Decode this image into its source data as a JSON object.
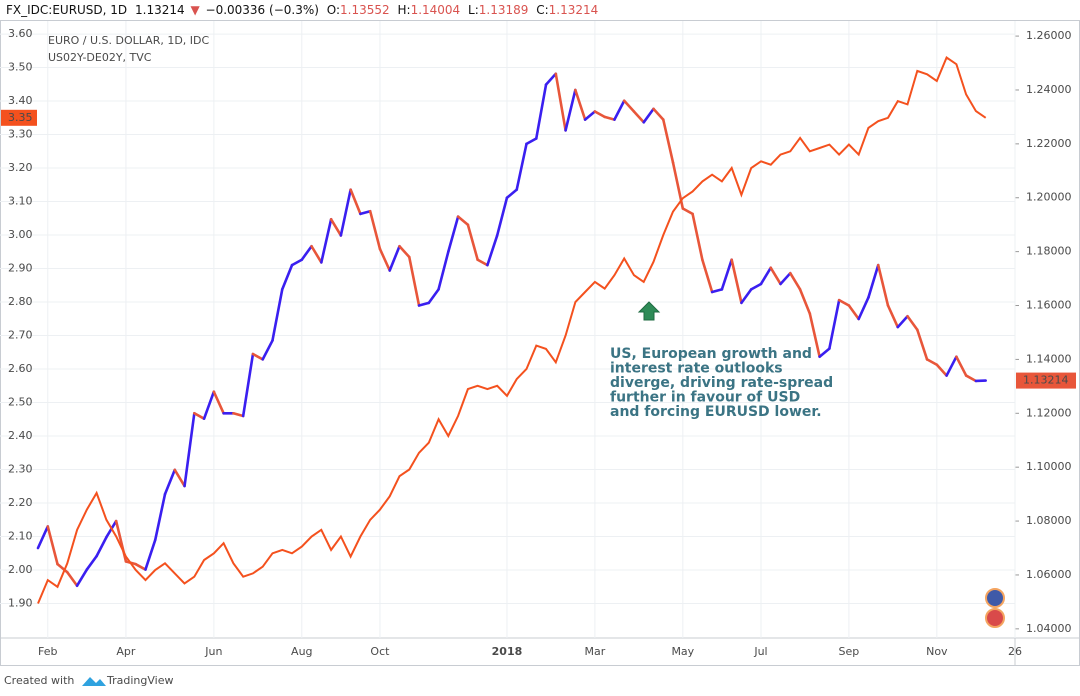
{
  "header": {
    "symbol": "FX_IDC:EURUSD, 1D",
    "price": "1.13214",
    "change": "−0.00336 (−0.3%)",
    "ohlc": [
      {
        "label": "O:",
        "value": "1.13552"
      },
      {
        "label": "H:",
        "value": "1.14004"
      },
      {
        "label": "L:",
        "value": "1.13189"
      },
      {
        "label": "C:",
        "value": "1.13214"
      }
    ]
  },
  "footer": {
    "text": "Created with",
    "brand": "TradingView"
  },
  "chart_data": {
    "type": "line",
    "categories": [
      null,
      "Feb",
      null,
      null,
      null,
      null,
      null,
      null,
      null,
      "Apr",
      null,
      null,
      null,
      null,
      null,
      null,
      null,
      null,
      "Jun",
      null,
      null,
      null,
      null,
      null,
      null,
      null,
      null,
      "Aug",
      null,
      null,
      null,
      null,
      null,
      null,
      null,
      "Oct",
      null,
      null,
      null,
      null,
      null,
      null,
      null,
      null,
      null,
      null,
      null,
      null,
      "2018",
      null,
      null,
      null,
      null,
      null,
      null,
      null,
      null,
      "Mar",
      null,
      null,
      null,
      null,
      null,
      null,
      null,
      null,
      "May",
      null,
      null,
      null,
      null,
      null,
      null,
      null,
      "Jul",
      null,
      null,
      null,
      null,
      null,
      null,
      null,
      null,
      "Sep",
      null,
      null,
      null,
      null,
      null,
      null,
      null,
      null,
      "Nov",
      null,
      null,
      null,
      null,
      null,
      null,
      null,
      "26"
    ],
    "series": [
      {
        "name": "EURO / U.S. DOLLAR, 1D, IDC",
        "axis": "y2",
        "up_color": "#3a1ff0",
        "down_color": "#e8563a",
        "last_label": "1.13214",
        "values": [
          1.07,
          1.078,
          1.064,
          1.061,
          1.056,
          1.062,
          1.067,
          1.074,
          1.08,
          1.065,
          1.064,
          1.062,
          1.073,
          1.09,
          1.099,
          1.093,
          1.12,
          1.118,
          1.128,
          1.12,
          1.12,
          1.119,
          1.142,
          1.14,
          1.147,
          1.166,
          1.175,
          1.177,
          1.182,
          1.176,
          1.192,
          1.186,
          1.203,
          1.194,
          1.195,
          1.181,
          1.173,
          1.182,
          1.178,
          1.16,
          1.161,
          1.166,
          1.18,
          1.193,
          1.19,
          1.177,
          1.175,
          1.186,
          1.2,
          1.203,
          1.22,
          1.222,
          1.242,
          1.246,
          1.225,
          1.24,
          1.229,
          1.232,
          1.23,
          1.229,
          1.236,
          1.232,
          1.228,
          1.233,
          1.229,
          1.213,
          1.196,
          1.194,
          1.177,
          1.165,
          1.166,
          1.177,
          1.161,
          1.166,
          1.168,
          1.174,
          1.168,
          1.172,
          1.166,
          1.157,
          1.141,
          1.144,
          1.162,
          1.16,
          1.155,
          1.163,
          1.175,
          1.16,
          1.152,
          1.156,
          1.151,
          1.14,
          1.138,
          1.134,
          1.141,
          1.134,
          1.132,
          1.13214,
          null,
          null,
          null
        ]
      },
      {
        "name": "US02Y-DE02Y, TVC",
        "color": "#f4511e",
        "last_label": "3.35",
        "values": [
          1.9,
          1.97,
          1.95,
          2.02,
          2.12,
          2.18,
          2.23,
          2.15,
          2.1,
          2.04,
          2.0,
          1.97,
          2.0,
          2.02,
          1.99,
          1.96,
          1.98,
          2.03,
          2.05,
          2.08,
          2.02,
          1.98,
          1.99,
          2.01,
          2.05,
          2.06,
          2.05,
          2.07,
          2.1,
          2.12,
          2.06,
          2.1,
          2.04,
          2.1,
          2.15,
          2.18,
          2.22,
          2.28,
          2.3,
          2.35,
          2.38,
          2.45,
          2.4,
          2.46,
          2.54,
          2.55,
          2.54,
          2.55,
          2.52,
          2.57,
          2.6,
          2.67,
          2.66,
          2.62,
          2.7,
          2.8,
          2.83,
          2.86,
          2.84,
          2.88,
          2.93,
          2.88,
          2.86,
          2.92,
          3.0,
          3.07,
          3.11,
          3.13,
          3.16,
          3.18,
          3.16,
          3.2,
          3.12,
          3.2,
          3.22,
          3.21,
          3.24,
          3.25,
          3.29,
          3.25,
          3.26,
          3.27,
          3.24,
          3.27,
          3.24,
          3.32,
          3.34,
          3.35,
          3.4,
          3.39,
          3.49,
          3.48,
          3.46,
          3.53,
          3.51,
          3.42,
          3.37,
          3.35,
          null,
          null,
          null
        ]
      }
    ],
    "ylim": [
      1.797,
      3.639
    ],
    "yticks": [
      {
        "value": 1.9,
        "label": "1.90"
      },
      {
        "value": 2.0,
        "label": "2.00"
      },
      {
        "value": 2.1,
        "label": "2.10"
      },
      {
        "value": 2.2,
        "label": "2.20"
      },
      {
        "value": 2.3,
        "label": "2.30"
      },
      {
        "value": 2.4,
        "label": "2.40"
      },
      {
        "value": 2.5,
        "label": "2.50"
      },
      {
        "value": 2.6,
        "label": "2.60"
      },
      {
        "value": 2.7,
        "label": "2.70"
      },
      {
        "value": 2.8,
        "label": "2.80"
      },
      {
        "value": 2.9,
        "label": "2.90"
      },
      {
        "value": 3.0,
        "label": "3.00"
      },
      {
        "value": 3.1,
        "label": "3.10"
      },
      {
        "value": 3.2,
        "label": "3.20"
      },
      {
        "value": 3.3,
        "label": "3.30"
      },
      {
        "value": 3.4,
        "label": "3.40"
      },
      {
        "value": 3.5,
        "label": "3.50"
      },
      {
        "value": 3.6,
        "label": "3.60"
      }
    ],
    "y2lim": [
      1.0366,
      1.2656
    ],
    "y2ticks": [
      {
        "value": 1.04,
        "label": "1.04000"
      },
      {
        "value": 1.06,
        "label": "1.06000"
      },
      {
        "value": 1.08,
        "label": "1.08000"
      },
      {
        "value": 1.1,
        "label": "1.10000"
      },
      {
        "value": 1.12,
        "label": "1.12000"
      },
      {
        "value": 1.14,
        "label": "1.14000"
      },
      {
        "value": 1.16,
        "label": "1.16000"
      },
      {
        "value": 1.18,
        "label": "1.18000"
      },
      {
        "value": 1.2,
        "label": "1.20000"
      },
      {
        "value": 1.22,
        "label": "1.22000"
      },
      {
        "value": 1.24,
        "label": "1.24000"
      },
      {
        "value": 1.26,
        "label": "1.26000"
      }
    ],
    "grid": true,
    "annotation": [
      "US, European growth and",
      "interest rate outlooks",
      "diverge, driving rate-spread",
      "further in favour of USD",
      "and forcing EURUSD lower."
    ]
  }
}
